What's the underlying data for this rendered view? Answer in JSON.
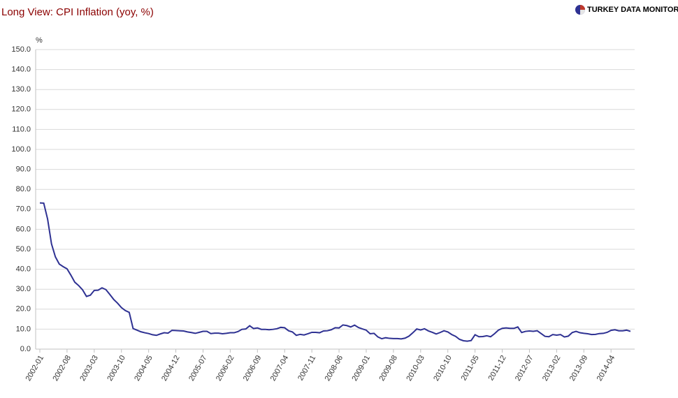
{
  "logo": "TURKEY DATA MONITOR",
  "chart_data": {
    "type": "line",
    "title": "Long View: CPI Inflation (yoy, %)",
    "y_label": "%",
    "categories": [
      "2002-01",
      null,
      null,
      null,
      null,
      null,
      null,
      "2002-08",
      null,
      null,
      null,
      null,
      null,
      null,
      "2003-03",
      null,
      null,
      null,
      null,
      null,
      null,
      "2003-10",
      null,
      null,
      null,
      null,
      null,
      null,
      "2004-05",
      null,
      null,
      null,
      null,
      null,
      null,
      "2004-12",
      null,
      null,
      null,
      null,
      null,
      null,
      "2005-07",
      null,
      null,
      null,
      null,
      null,
      null,
      "2006-02",
      null,
      null,
      null,
      null,
      null,
      null,
      "2006-09",
      null,
      null,
      null,
      null,
      null,
      null,
      "2007-04",
      null,
      null,
      null,
      null,
      null,
      null,
      "2007-11",
      null,
      null,
      null,
      null,
      null,
      null,
      "2008-06",
      null,
      null,
      null,
      null,
      null,
      null,
      "2009-01",
      null,
      null,
      null,
      null,
      null,
      null,
      "2009-08",
      null,
      null,
      null,
      null,
      null,
      null,
      "2010-03",
      null,
      null,
      null,
      null,
      null,
      null,
      "2010-10",
      null,
      null,
      null,
      null,
      null,
      null,
      "2011-05",
      null,
      null,
      null,
      null,
      null,
      null,
      "2011-12",
      null,
      null,
      null,
      null,
      null,
      null,
      "2012-07",
      null,
      null,
      null,
      null,
      null,
      null,
      "2013-02",
      null,
      null,
      null,
      null,
      null,
      null,
      "2013-09",
      null,
      null,
      null,
      null,
      null,
      null,
      "2014-04",
      null,
      null,
      null,
      null,
      null
    ],
    "series": [
      {
        "name": "CPI Inflation",
        "color": "#2e3192",
        "values": [
          73.2,
          73.1,
          65.1,
          52.7,
          46.2,
          42.6,
          41.3,
          40.2,
          37.0,
          33.5,
          31.8,
          29.7,
          26.4,
          27.0,
          29.4,
          29.5,
          30.7,
          29.8,
          27.4,
          24.9,
          23.0,
          20.8,
          19.3,
          18.4,
          10.3,
          9.5,
          8.7,
          8.2,
          7.8,
          7.2,
          6.9,
          7.6,
          8.2,
          8.0,
          9.4,
          9.3,
          9.2,
          9.1,
          8.6,
          8.3,
          7.9,
          8.4,
          8.9,
          8.9,
          7.8,
          8.0,
          8.0,
          7.7,
          7.9,
          8.2,
          8.2,
          8.8,
          9.9,
          10.1,
          11.7,
          10.3,
          10.6,
          9.9,
          9.9,
          9.7,
          9.9,
          10.2,
          10.9,
          10.7,
          9.2,
          8.6,
          6.9,
          7.4,
          7.1,
          7.7,
          8.4,
          8.4,
          8.2,
          9.1,
          9.2,
          9.7,
          10.7,
          10.6,
          12.1,
          11.8,
          11.1,
          12.0,
          10.8,
          10.1,
          9.5,
          7.7,
          7.9,
          6.1,
          5.2,
          5.7,
          5.4,
          5.3,
          5.3,
          5.1,
          5.5,
          6.5,
          8.2,
          10.1,
          9.6,
          10.2,
          9.1,
          8.4,
          7.6,
          8.3,
          9.2,
          8.6,
          7.3,
          6.4,
          4.9,
          4.2,
          4.0,
          4.3,
          7.2,
          6.2,
          6.3,
          6.7,
          6.2,
          7.7,
          9.5,
          10.4,
          10.6,
          10.4,
          10.4,
          11.1,
          8.3,
          8.9,
          9.1,
          8.9,
          9.2,
          7.8,
          6.4,
          6.2,
          7.3,
          7.0,
          7.3,
          6.1,
          6.5,
          8.3,
          8.9,
          8.2,
          7.9,
          7.7,
          7.3,
          7.4,
          7.8,
          7.9,
          8.4,
          9.4,
          9.7,
          9.2,
          9.2,
          9.5,
          8.9
        ]
      }
    ],
    "ylim": [
      0,
      150
    ],
    "yticks": [
      {
        "value": 0,
        "label": "0.0"
      },
      {
        "value": 10,
        "label": "10.0"
      },
      {
        "value": 20,
        "label": "20.0"
      },
      {
        "value": 30,
        "label": "30.0"
      },
      {
        "value": 40,
        "label": "40.0"
      },
      {
        "value": 50,
        "label": "50.0"
      },
      {
        "value": 60,
        "label": "60.0"
      },
      {
        "value": 70,
        "label": "70.0"
      },
      {
        "value": 80,
        "label": "80.0"
      },
      {
        "value": 90,
        "label": "90.0"
      },
      {
        "value": 100,
        "label": "100.0"
      },
      {
        "value": 110,
        "label": "110.0"
      },
      {
        "value": 120,
        "label": "120.0"
      },
      {
        "value": 130,
        "label": "130.0"
      },
      {
        "value": 140,
        "label": "140.0"
      },
      {
        "value": 150,
        "label": "150.0"
      }
    ],
    "grid": true
  }
}
